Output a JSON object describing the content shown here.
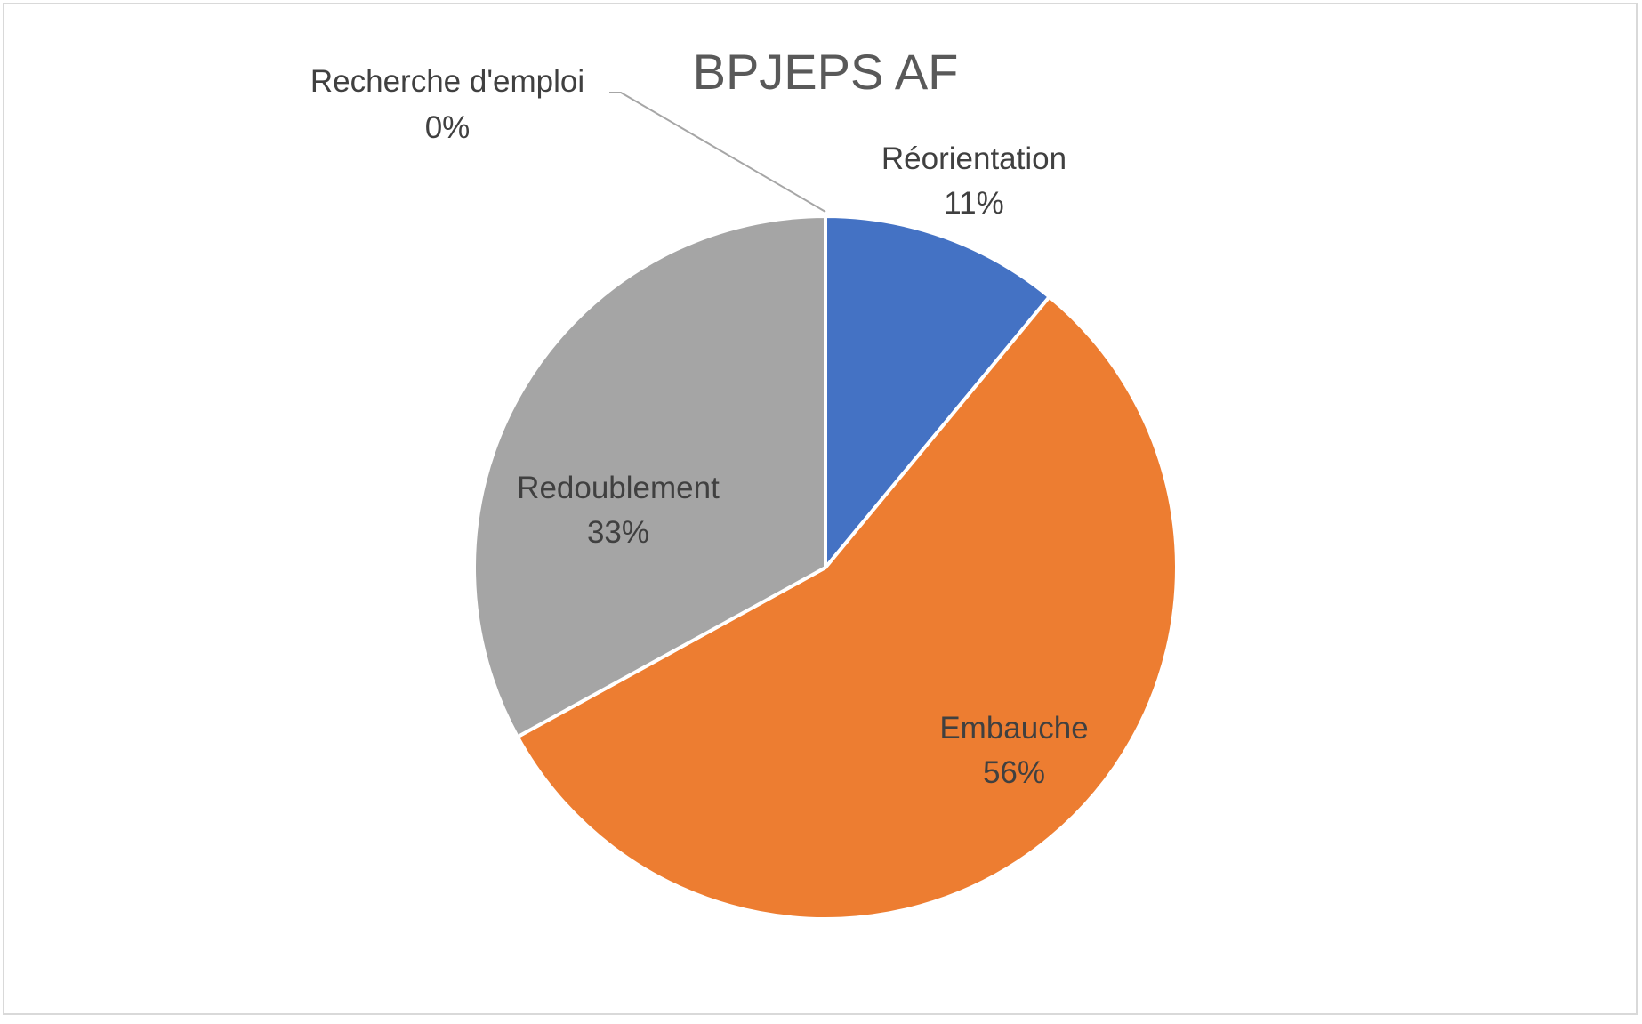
{
  "chart_data": {
    "type": "pie",
    "title": "BPJEPS AF",
    "categories": [
      "Réorientation",
      "Embauche",
      "Redoublement",
      "Recherche d'emploi"
    ],
    "values": [
      11,
      56,
      33,
      0
    ],
    "labels": [
      "11%",
      "56%",
      "33%",
      "0%"
    ],
    "colors": [
      "#4472C4",
      "#ED7D31",
      "#A5A5A5",
      "#FFC000"
    ],
    "start_angle": "top",
    "direction": "clockwise",
    "legend": "none"
  }
}
